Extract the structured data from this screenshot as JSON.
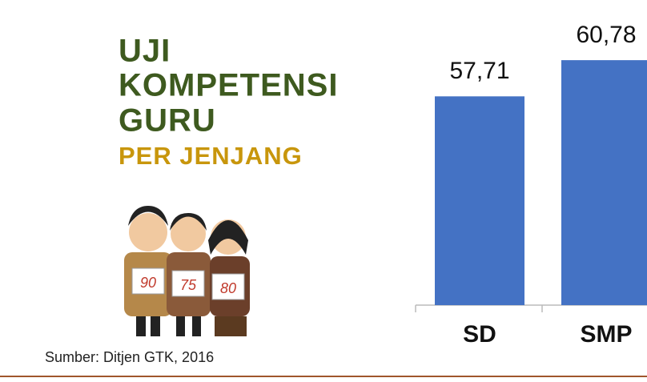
{
  "title_lines": [
    "UJI",
    "KOMPETENSI",
    "GURU"
  ],
  "subtitle": "PER JENJANG",
  "source": "Sumber: Ditjen GTK, 2016",
  "illustration_scores": [
    "90",
    "75",
    "80"
  ],
  "chart_data": {
    "type": "bar",
    "categories": [
      "SD",
      "SMP"
    ],
    "values": [
      57.71,
      60.78
    ],
    "value_labels": [
      "57,71",
      "60,78"
    ],
    "color": "#4472c4",
    "ylim": [
      40,
      65
    ]
  }
}
